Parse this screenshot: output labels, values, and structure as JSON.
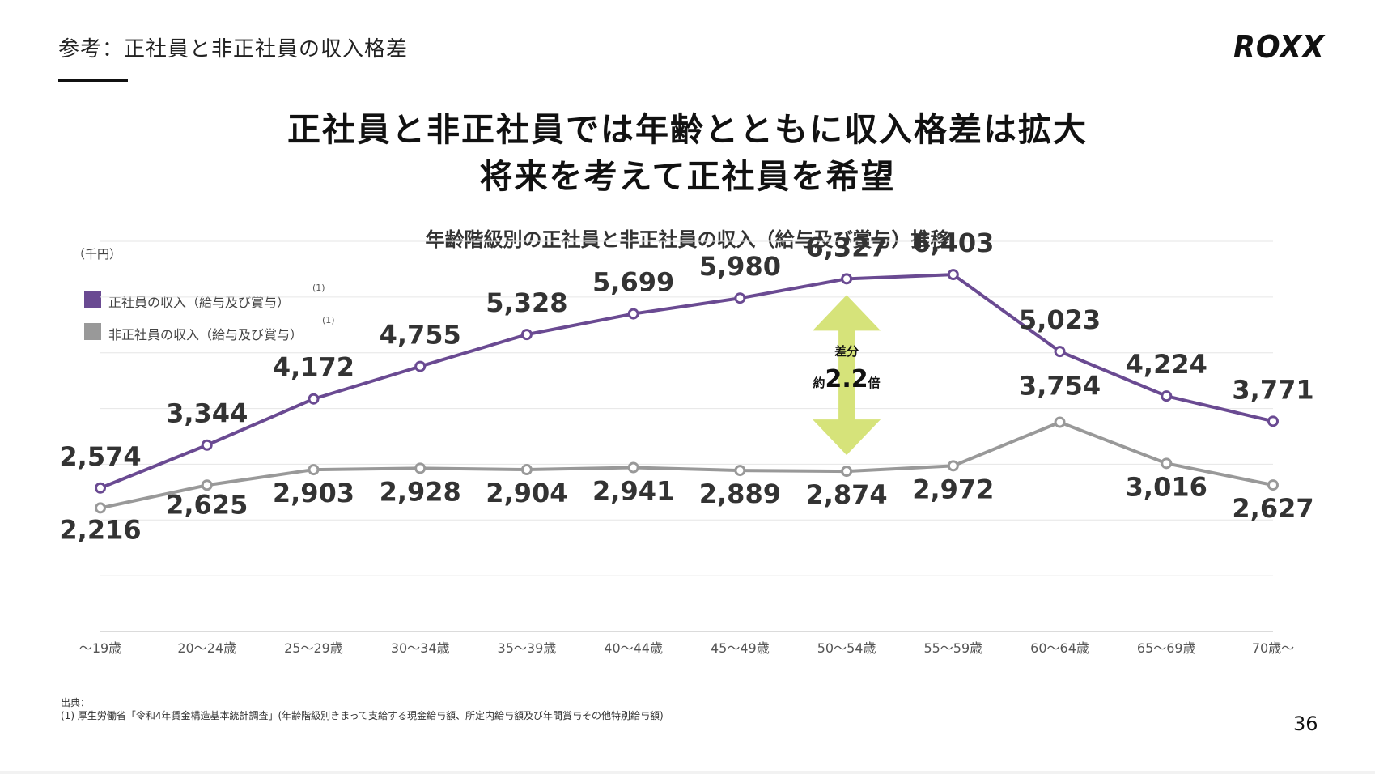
{
  "header": {
    "title": "参考：正社員と非正社員の収入格差",
    "logo": "ROXX"
  },
  "headline": {
    "line1": "正社員と非正社員では年齢とともに収入格差は拡大",
    "line2": "将来を考えて正社員を希望"
  },
  "legend": {
    "items": [
      {
        "label": "正社員の収入（給与及び賞与）",
        "sup": "(1)",
        "color": "#6a4a92"
      },
      {
        "label": "非正社員の収入（給与及び賞与）",
        "sup": "(1)",
        "color": "#999999"
      }
    ]
  },
  "annotation": {
    "label": "差分",
    "prefix": "約",
    "value": "2.2",
    "suffix": "倍",
    "color": "#d6e37a"
  },
  "source": {
    "heading": "出典：",
    "note": "(1) 厚生労働省「令和4年賃金構造基本統計調査」(年齢階級別きまって支給する現金給与額、所定内給与額及び年間賞与その他特別給与額)"
  },
  "page_number": "36",
  "chart_data": {
    "type": "line",
    "title": "年齢階級別の正社員と非正社員の収入（給与及び賞与）推移",
    "unit_label": "（千円）",
    "categories": [
      "〜19歳",
      "20〜24歳",
      "25〜29歳",
      "30〜34歳",
      "35〜39歳",
      "40〜44歳",
      "45〜49歳",
      "50〜54歳",
      "55〜59歳",
      "60〜64歳",
      "65〜69歳",
      "70歳〜"
    ],
    "series": [
      {
        "name": "正社員の収入（給与及び賞与）",
        "color": "#6a4a92",
        "values": [
          2574,
          3344,
          4172,
          4755,
          5328,
          5699,
          5980,
          6327,
          6403,
          5023,
          4224,
          3771
        ],
        "labels": [
          "2,574",
          "3,344",
          "4,172",
          "4,755",
          "5,328",
          "5,699",
          "5,980",
          "6,327",
          "6,403",
          "5,023",
          "4,224",
          "3,771"
        ]
      },
      {
        "name": "非正社員の収入（給与及び賞与）",
        "color": "#999999",
        "values": [
          2216,
          2625,
          2903,
          2928,
          2904,
          2941,
          2889,
          2874,
          2972,
          3754,
          3016,
          2627
        ],
        "labels": [
          "2,216",
          "2,625",
          "2,903",
          "2,928",
          "2,904",
          "2,941",
          "2,889",
          "2,874",
          "2,972",
          "3,754",
          "3,016",
          "2,627"
        ]
      }
    ],
    "ylim": [
      0,
      7000
    ],
    "grid": true,
    "legend_position": "top-left"
  }
}
